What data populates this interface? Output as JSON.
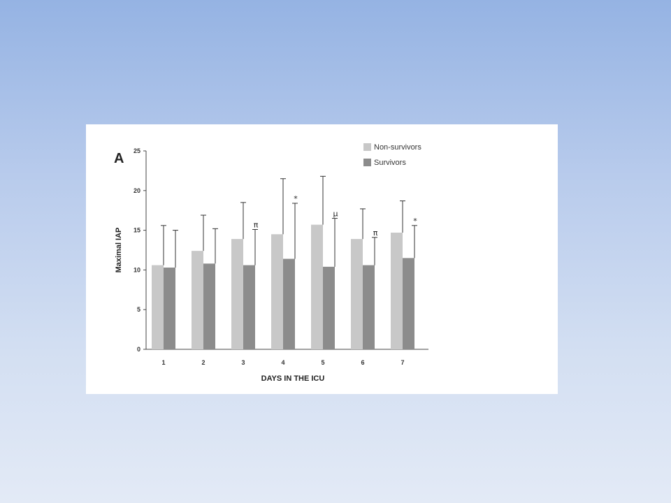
{
  "chart_data": {
    "type": "bar",
    "panel_label": "A",
    "title": "",
    "xlabel": "DAYS IN THE ICU",
    "ylabel": "Maximal IAP",
    "categories": [
      "1",
      "2",
      "3",
      "4",
      "5",
      "6",
      "7"
    ],
    "ylim": [
      0,
      25
    ],
    "yticks": [
      0,
      5,
      10,
      15,
      20,
      25
    ],
    "grid": false,
    "legend_position": "top-right",
    "series": [
      {
        "name": "Non-survivors",
        "color": "#c8c8c8",
        "values": [
          10.6,
          12.4,
          13.9,
          14.5,
          15.7,
          13.9,
          14.7
        ],
        "error_upper": [
          15.6,
          16.9,
          18.5,
          21.5,
          21.8,
          17.7,
          18.7
        ]
      },
      {
        "name": "Survivors",
        "color": "#8c8c8c",
        "values": [
          10.3,
          10.8,
          10.6,
          11.4,
          10.4,
          10.6,
          11.5
        ],
        "error_upper": [
          15.0,
          15.2,
          15.1,
          18.4,
          16.5,
          14.1,
          15.6
        ],
        "annotations": [
          "",
          "",
          "π",
          "*",
          "µ",
          "π",
          "*"
        ]
      }
    ]
  }
}
